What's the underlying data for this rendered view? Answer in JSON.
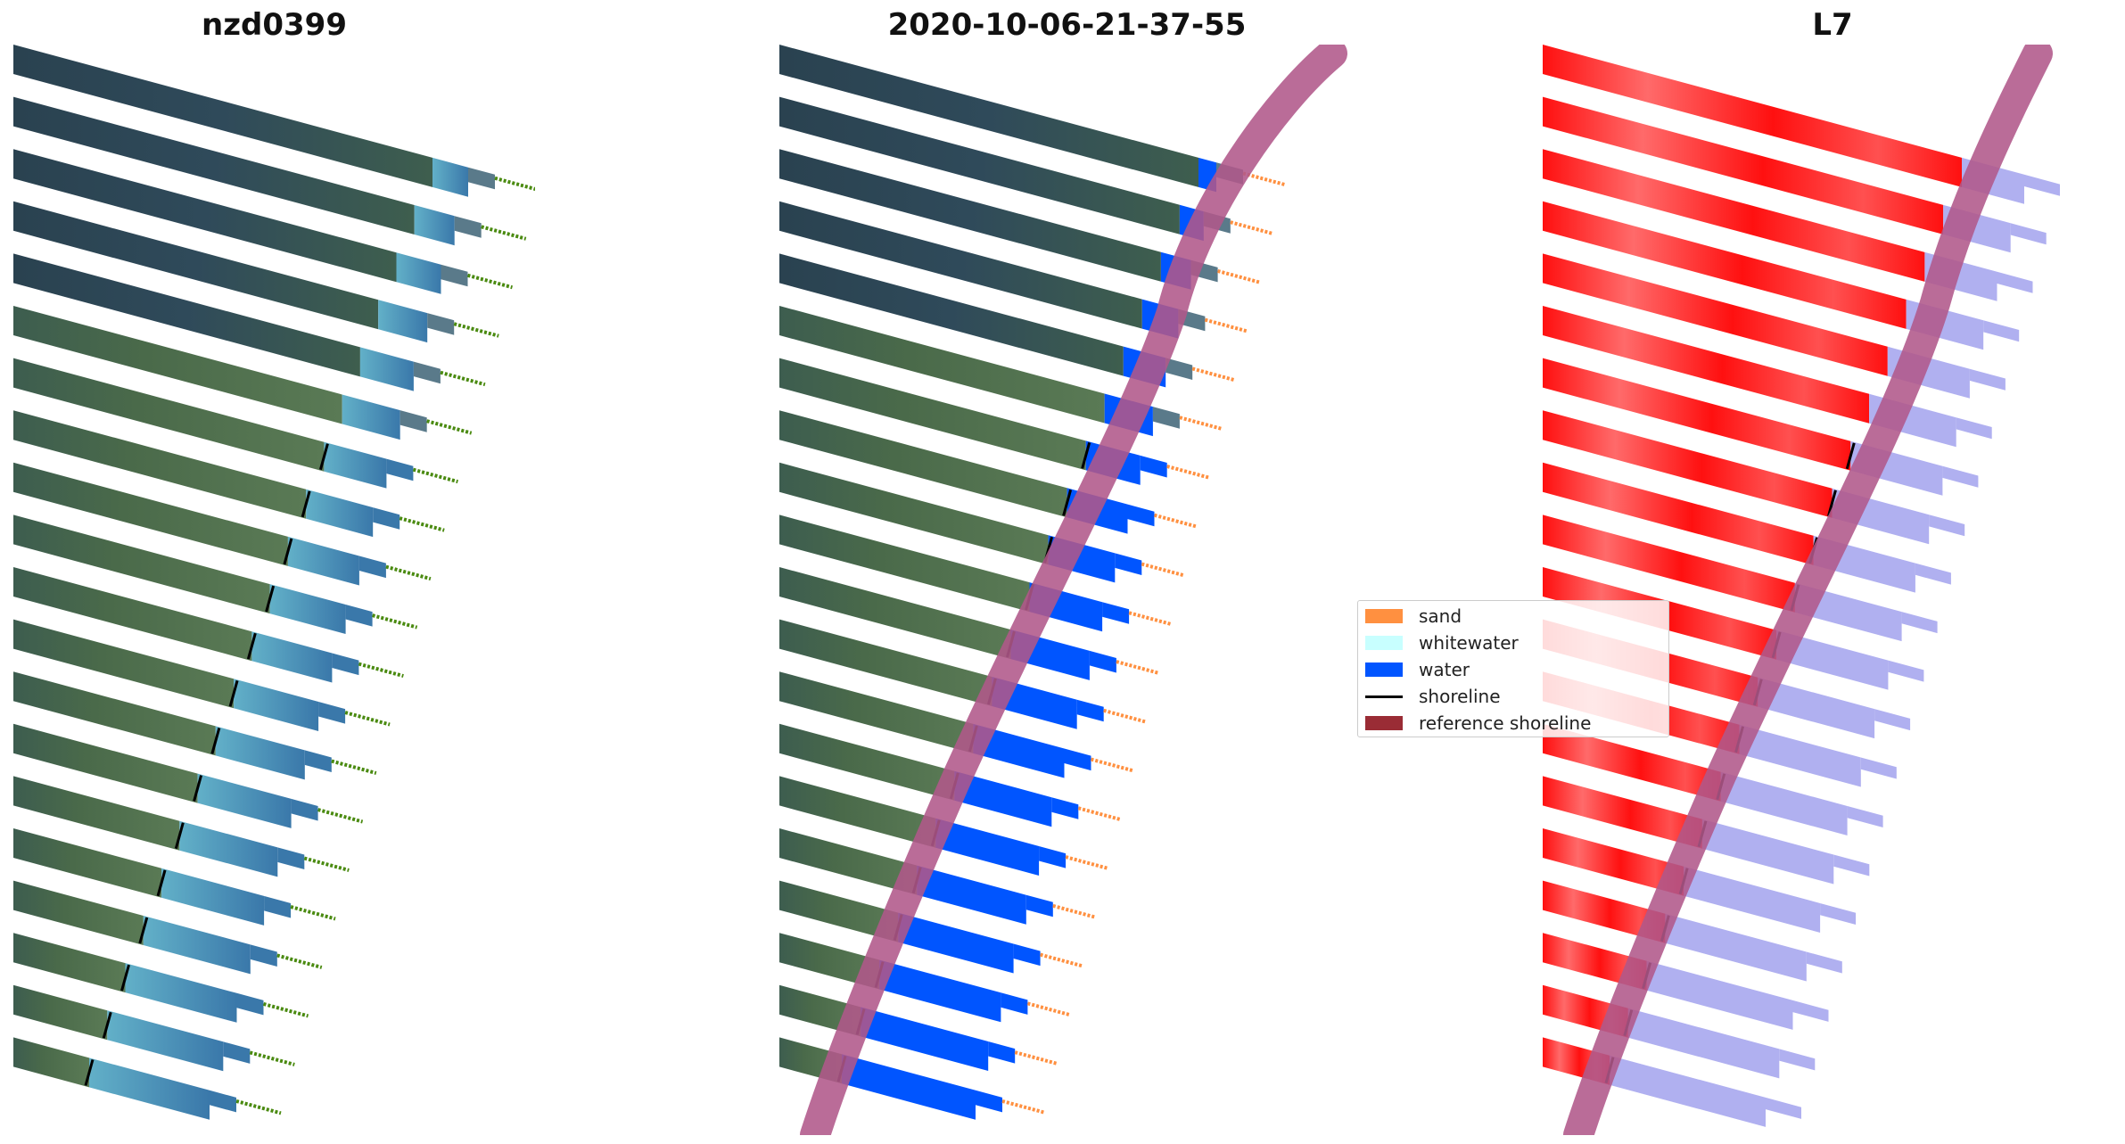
{
  "panels": [
    {
      "title": "nzd0399",
      "style": "rgb"
    },
    {
      "title": "2020-10-06-21-37-55",
      "style": "classified"
    },
    {
      "title": "L7",
      "style": "index"
    }
  ],
  "legend": {
    "items": [
      {
        "label": "sand",
        "kind": "patch",
        "color": "#ff9040"
      },
      {
        "label": "whitewater",
        "kind": "patch",
        "color": "#c8ffff"
      },
      {
        "label": "water",
        "kind": "patch",
        "color": "#0055ff"
      },
      {
        "label": "shoreline",
        "kind": "line",
        "color": "#000000"
      },
      {
        "label": "reference shoreline",
        "kind": "patch",
        "color": "#9a2c35"
      }
    ]
  },
  "colors": {
    "land_dark": "#2f4a5a",
    "land_green": "#4a6a4a",
    "sea_light": "#62b0c8",
    "sea_deep": "#3a78aa",
    "transect_green": "#4a8a10",
    "transect_orange": "#ff9040",
    "water_blue": "#0055ff",
    "reference_band": "#b0588a",
    "index_red": "#ff1010",
    "index_lavender": "#b0b0f0"
  }
}
